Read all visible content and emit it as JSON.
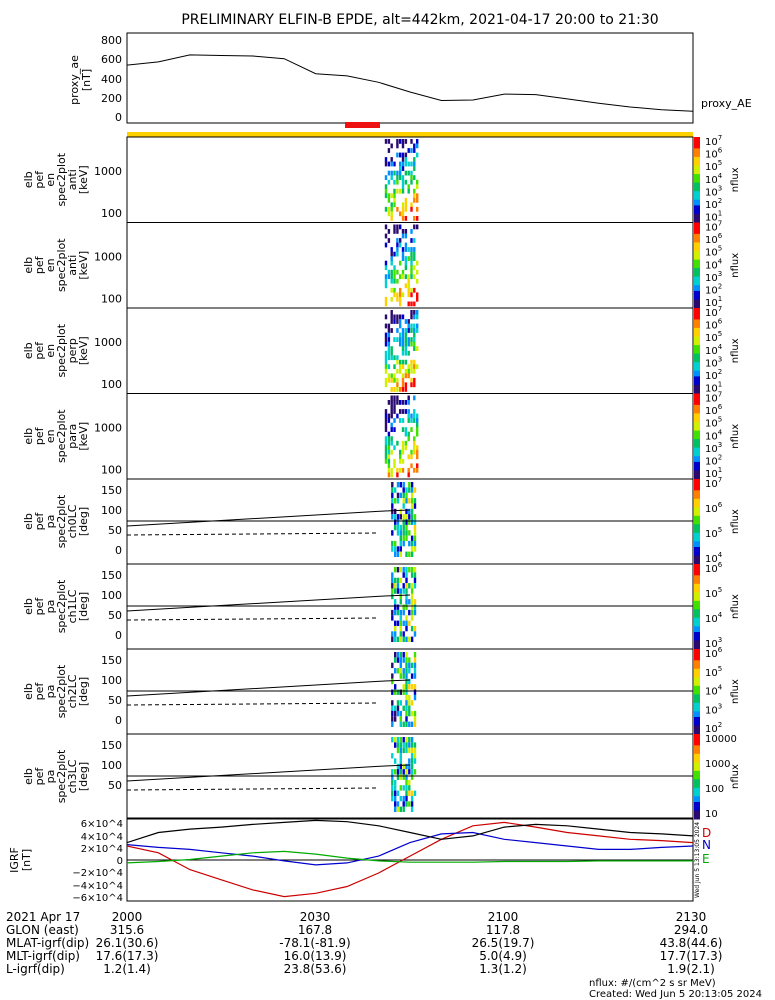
{
  "title": "PRELIMINARY ELFIN-B EPDE, alt=442km, 2021-04-17 20:00 to 21:30",
  "top_panel": {
    "ylabel_lines": [
      "proxy_ae",
      "[nT]"
    ],
    "yticks": [
      "800",
      "600",
      "400",
      "200",
      "0"
    ],
    "legend": "proxy_AE"
  },
  "spec_panels": [
    {
      "ylabel_lines": [
        "elb",
        "pef",
        "en",
        "spec2plot",
        "anti",
        "[keV]"
      ],
      "yticks": [
        "1000",
        "100"
      ],
      "cbar_label": "nflux",
      "cbar_ticks": [
        "10^7",
        "10^6",
        "10^5",
        "10^4",
        "10^3",
        "10^2",
        "10^1"
      ]
    },
    {
      "ylabel_lines": [
        "elb",
        "pef",
        "en",
        "spec2plot",
        "anti",
        "[keV]"
      ],
      "yticks": [
        "1000",
        "100"
      ],
      "cbar_label": "nflux",
      "cbar_ticks": [
        "10^7",
        "10^6",
        "10^5",
        "10^4",
        "10^3",
        "10^2",
        "10^1"
      ]
    },
    {
      "ylabel_lines": [
        "elb",
        "pef",
        "en",
        "spec2plot",
        "perp",
        "[keV]"
      ],
      "yticks": [
        "1000",
        "100"
      ],
      "cbar_label": "nflux",
      "cbar_ticks": [
        "10^7",
        "10^6",
        "10^5",
        "10^4",
        "10^3",
        "10^2",
        "10^1"
      ]
    },
    {
      "ylabel_lines": [
        "elb",
        "pef",
        "en",
        "spec2plot",
        "para",
        "[keV]"
      ],
      "yticks": [
        "1000",
        "100"
      ],
      "cbar_label": "nflux",
      "cbar_ticks": [
        "10^7",
        "10^6",
        "10^5",
        "10^4",
        "10^3",
        "10^2",
        "10^1"
      ]
    }
  ],
  "pa_panels": [
    {
      "ylabel_lines": [
        "elb",
        "pef",
        "pa",
        "spec2plot",
        "ch0LC",
        "[deg]"
      ],
      "yticks": [
        "150",
        "100",
        "50",
        "0"
      ],
      "cbar_label": "nflux",
      "cbar_ticks": [
        "10^7",
        "10^6",
        "10^5",
        "10^4"
      ]
    },
    {
      "ylabel_lines": [
        "elb",
        "pef",
        "pa",
        "spec2plot",
        "ch1LC",
        "[deg]"
      ],
      "yticks": [
        "150",
        "100",
        "50",
        "0"
      ],
      "cbar_label": "nflux",
      "cbar_ticks": [
        "10^6",
        "10^5",
        "10^4",
        "10^3"
      ]
    },
    {
      "ylabel_lines": [
        "elb",
        "pef",
        "pa",
        "spec2plot",
        "ch2LC",
        "[deg]"
      ],
      "yticks": [
        "150",
        "100",
        "50",
        "0"
      ],
      "cbar_label": "nflux",
      "cbar_ticks": [
        "10^6",
        "10^5",
        "10^4",
        "10^3",
        "10^2"
      ]
    },
    {
      "ylabel_lines": [
        "elb",
        "pef",
        "pa",
        "spec2plot",
        "ch3LC",
        "[deg]"
      ],
      "yticks": [
        "150",
        "100",
        "50"
      ],
      "cbar_label": "nflux",
      "cbar_ticks": [
        "10000",
        "1000",
        "100",
        "10"
      ]
    }
  ],
  "igrf_panel": {
    "ylabel_lines": [
      "IGRF",
      "[nT]"
    ],
    "yticks": [
      "6×10^4",
      "4×10^4",
      "2×10^4",
      "0",
      "−2×10^4",
      "−4×10^4",
      "−6×10^4"
    ],
    "legend": [
      {
        "name": "D",
        "color": "#cc0000"
      },
      {
        "name": "N",
        "color": "#0000cc"
      },
      {
        "name": "E",
        "color": "#00aa00"
      }
    ]
  },
  "footer": {
    "rows": [
      {
        "label": "2021 Apr 17",
        "values": [
          "2000",
          "2030",
          "2100",
          "2130"
        ]
      },
      {
        "label": "GLON (east)",
        "values": [
          "315.6",
          "167.8",
          "117.8",
          "294.0"
        ]
      },
      {
        "label": "MLAT-igrf(dip)",
        "values": [
          "26.1(30.6)",
          "-78.1(-81.9)",
          "26.5(19.7)",
          "43.8(44.6)"
        ]
      },
      {
        "label": "MLT-igrf(dip)",
        "values": [
          "17.6(17.3)",
          "16.0(13.9)",
          "5.0(4.9)",
          "17.7(17.3)"
        ]
      },
      {
        "label": "L-igrf(dip)",
        "values": [
          "1.2(1.4)",
          "23.8(53.6)",
          "1.3(1.2)",
          "1.9(2.1)"
        ]
      }
    ],
    "units_note": "nflux: #/(cm^2 s sr MeV)",
    "created": "Created: Wed Jun  5 20:13:05 2024",
    "side_stamp": "Wed Jun  5 13:13:05 2024"
  },
  "chart_data": {
    "type": "line",
    "x_unit": "UT (HHMM)",
    "x_range": [
      "2000",
      "2130"
    ],
    "proxy_ae": {
      "ylim": [
        0,
        800
      ],
      "x_minutes": [
        0,
        5,
        10,
        15,
        20,
        25,
        30,
        35,
        40,
        45,
        50,
        55,
        60,
        65,
        70,
        75,
        80,
        85,
        90
      ],
      "values": [
        530,
        560,
        625,
        620,
        615,
        590,
        450,
        430,
        370,
        280,
        200,
        205,
        260,
        255,
        215,
        175,
        140,
        115,
        100
      ]
    },
    "igrf": {
      "ylim": [
        -60000,
        60000
      ],
      "x_minutes": [
        0,
        5,
        10,
        15,
        20,
        25,
        30,
        35,
        40,
        45,
        50,
        55,
        60,
        65,
        70,
        75,
        80,
        85,
        90
      ],
      "series": [
        {
          "name": "D",
          "values": [
            20000,
            10000,
            -15000,
            -30000,
            -45000,
            -55000,
            -50000,
            -40000,
            -20000,
            5000,
            30000,
            50000,
            55000,
            48000,
            40000,
            35000,
            30000,
            28000,
            25000
          ]
        },
        {
          "name": "N",
          "values": [
            22000,
            18000,
            15000,
            10000,
            5000,
            -2000,
            -8000,
            -5000,
            5000,
            25000,
            38000,
            40000,
            30000,
            25000,
            20000,
            15000,
            15000,
            18000,
            20000
          ]
        },
        {
          "name": "E",
          "values": [
            -5000,
            -3000,
            0,
            5000,
            10000,
            12000,
            8000,
            2000,
            -2000,
            -4000,
            -4000,
            -4000,
            -3000,
            -3000,
            -3000,
            -2000,
            -2000,
            -2000,
            -2000
          ]
        },
        {
          "name": "total",
          "values": [
            25000,
            40000,
            45000,
            48000,
            52000,
            55000,
            58000,
            56000,
            50000,
            40000,
            30000,
            35000,
            48000,
            52000,
            50000,
            45000,
            40000,
            38000,
            35000
          ]
        }
      ]
    },
    "spectrograms": {
      "active_interval_minutes": [
        41,
        46
      ],
      "energy_range_keV": [
        60,
        6000
      ],
      "pitch_angle_range_deg": [
        0,
        180
      ]
    }
  }
}
